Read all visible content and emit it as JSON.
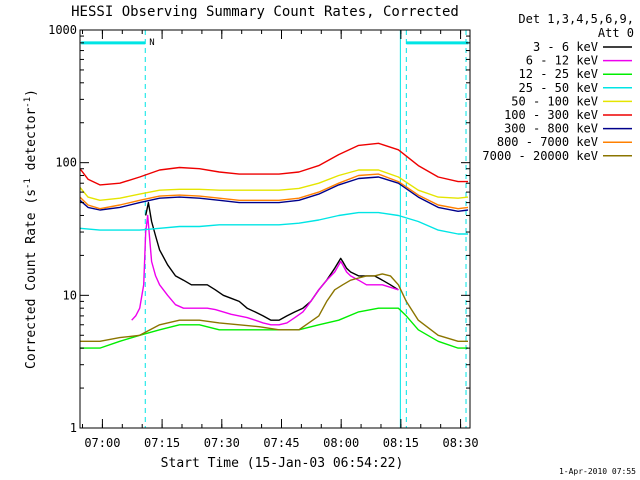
{
  "colors": {
    "background": "#ffffff",
    "axis": "#000000",
    "marker": "#00e5e5"
  },
  "chart_data": {
    "type": "line",
    "title": "HESSI Observing Summary Count Rates, Corrected",
    "xlabel": "Start Time (15-Jan-03 06:54:22)",
    "ylabel": "Corrected Count Rate (s",
    "ylabel_sup1": "-1",
    "ylabel_mid": " detector",
    "ylabel_sup2": "-1",
    "ylabel_end": ")",
    "y_scale": "log",
    "ylim": [
      1,
      1000
    ],
    "y_ticks": [
      {
        "value": 1,
        "label": "1"
      },
      {
        "value": 10,
        "label": "10"
      },
      {
        "value": 100,
        "label": "100"
      },
      {
        "value": 1000,
        "label": "1000"
      }
    ],
    "x_unit": "minutes since 06:54:22",
    "xlim": [
      0,
      98
    ],
    "x_ticks": [
      {
        "value": 5.63,
        "label": "07:00"
      },
      {
        "value": 20.63,
        "label": "07:15"
      },
      {
        "value": 35.63,
        "label": "07:30"
      },
      {
        "value": 50.63,
        "label": "07:45"
      },
      {
        "value": 65.63,
        "label": "08:00"
      },
      {
        "value": 80.63,
        "label": "08:15"
      },
      {
        "value": 95.63,
        "label": "08:30"
      }
    ],
    "legend_header": [
      "Det 1,3,4,5,6,9,",
      "Att 0"
    ],
    "legend_position": "right",
    "footer_date": "1-Apr-2010 07:55",
    "markers": {
      "letter": "N",
      "dashed_lines_x": [
        16.4,
        82.0,
        97.0
      ],
      "solid_lines_x": [
        80.5
      ],
      "night_bars": [
        [
          0.3,
          16.4
        ],
        [
          82.0,
          97.6
        ]
      ],
      "night_level": 800
    },
    "series": [
      {
        "name": "3 - 6 keV",
        "color": "#000000",
        "x": [
          0,
          2,
          5,
          8,
          10,
          12,
          14,
          15.5,
          16.5,
          17.2,
          18,
          19,
          20,
          22,
          24,
          26,
          28,
          30,
          32,
          34,
          36,
          38,
          40,
          42,
          44,
          46,
          48,
          50,
          52,
          54,
          56,
          58,
          60,
          62,
          64,
          65.5,
          66,
          67,
          68,
          70,
          72,
          74,
          76,
          78,
          80,
          80.4
        ],
        "y": [
          null,
          null,
          null,
          null,
          null,
          null,
          null,
          null,
          40,
          50,
          36,
          28,
          22,
          17,
          14,
          13,
          12,
          12,
          12,
          11,
          10,
          9.5,
          9,
          8,
          7.5,
          7,
          6.5,
          6.5,
          7,
          7.5,
          8,
          9,
          11,
          13,
          16,
          19,
          18,
          16,
          15,
          14,
          14,
          14,
          13,
          12,
          11,
          null
        ]
      },
      {
        "name": "6 - 12 keV",
        "color": "#ee00ee",
        "x": [
          13,
          14,
          15,
          16,
          16.5,
          17,
          18,
          19,
          20,
          22,
          24,
          26,
          28,
          30,
          32,
          34,
          36,
          38,
          40,
          42,
          44,
          46,
          48,
          50,
          52,
          54,
          56,
          58,
          60,
          62,
          64,
          65.5,
          66,
          67,
          68,
          70,
          72,
          74,
          76,
          78,
          80
        ],
        "y": [
          6.5,
          7,
          8,
          12,
          30,
          40,
          18,
          14,
          12,
          10,
          8.5,
          8,
          8,
          8,
          8,
          7.8,
          7.5,
          7.2,
          7,
          6.8,
          6.5,
          6.2,
          6,
          6,
          6.2,
          6.8,
          7.5,
          9,
          11,
          13,
          15,
          18,
          17,
          15,
          14,
          13,
          12,
          12,
          12,
          11.5,
          11
        ]
      },
      {
        "name": "12 - 25 keV",
        "color": "#00ee00",
        "x": [
          0,
          5,
          10,
          15,
          20,
          25,
          30,
          35,
          40,
          45,
          50,
          55,
          60,
          65,
          70,
          75,
          80,
          82,
          85,
          90,
          95,
          97.5
        ],
        "y": [
          4,
          4,
          4.5,
          5,
          5.5,
          6,
          6,
          5.5,
          5.5,
          5.5,
          5.5,
          5.5,
          6,
          6.5,
          7.5,
          8,
          8,
          7,
          5.5,
          4.5,
          4,
          4
        ]
      },
      {
        "name": "25 - 50 keV",
        "color": "#00e5e5",
        "x": [
          0,
          5,
          10,
          15,
          20,
          25,
          30,
          35,
          40,
          45,
          50,
          55,
          60,
          65,
          70,
          75,
          80,
          85,
          90,
          95,
          97.5
        ],
        "y": [
          32,
          31,
          31,
          31,
          32,
          33,
          33,
          34,
          34,
          34,
          34,
          35,
          37,
          40,
          42,
          42,
          40,
          36,
          31,
          29,
          29
        ]
      },
      {
        "name": "50 - 100 keV",
        "color": "#e5e500",
        "x": [
          0,
          2,
          5,
          10,
          15,
          20,
          25,
          30,
          35,
          40,
          45,
          50,
          55,
          60,
          65,
          70,
          75,
          80,
          85,
          90,
          95,
          97.5
        ],
        "y": [
          65,
          55,
          52,
          54,
          58,
          62,
          63,
          63,
          62,
          62,
          62,
          62,
          64,
          70,
          80,
          88,
          88,
          78,
          62,
          55,
          54,
          55
        ]
      },
      {
        "name": "100 - 300 keV",
        "color": "#ee0000",
        "x": [
          0,
          2,
          5,
          10,
          15,
          20,
          25,
          30,
          35,
          40,
          45,
          50,
          55,
          60,
          65,
          70,
          75,
          80,
          85,
          90,
          95,
          97.5
        ],
        "y": [
          90,
          75,
          68,
          70,
          78,
          88,
          92,
          90,
          85,
          82,
          82,
          82,
          85,
          95,
          115,
          135,
          140,
          125,
          95,
          78,
          72,
          72
        ]
      },
      {
        "name": "300 - 800 keV",
        "color": "#00008b",
        "x": [
          0,
          2,
          5,
          10,
          15,
          20,
          25,
          30,
          35,
          40,
          45,
          50,
          55,
          60,
          65,
          70,
          75,
          80,
          85,
          90,
          95,
          97.5
        ],
        "y": [
          52,
          46,
          44,
          46,
          50,
          54,
          55,
          54,
          52,
          50,
          50,
          50,
          52,
          58,
          68,
          76,
          78,
          70,
          55,
          46,
          43,
          44
        ]
      },
      {
        "name": "800 - 7000 keV",
        "color": "#ff8000",
        "x": [
          0,
          2,
          5,
          10,
          15,
          20,
          25,
          30,
          35,
          40,
          45,
          50,
          55,
          60,
          65,
          70,
          75,
          80,
          85,
          90,
          95,
          97.5
        ],
        "y": [
          55,
          48,
          45,
          48,
          52,
          56,
          57,
          56,
          54,
          52,
          52,
          52,
          54,
          60,
          70,
          80,
          82,
          72,
          57,
          48,
          45,
          46
        ]
      },
      {
        "name": "7000 - 20000 keV",
        "color": "#8b7500",
        "x": [
          0,
          5,
          10,
          15,
          20,
          25,
          30,
          35,
          40,
          45,
          50,
          55,
          60,
          62,
          64,
          66,
          68,
          70,
          72,
          74,
          76,
          78,
          80,
          82,
          85,
          90,
          95,
          97.5
        ],
        "y": [
          4.5,
          4.5,
          4.8,
          5,
          6,
          6.5,
          6.5,
          6.2,
          6,
          5.8,
          5.5,
          5.5,
          7,
          9,
          11,
          12,
          13,
          13.5,
          14,
          14,
          14.5,
          14,
          12,
          9,
          6.5,
          5,
          4.5,
          4.5
        ]
      }
    ]
  }
}
